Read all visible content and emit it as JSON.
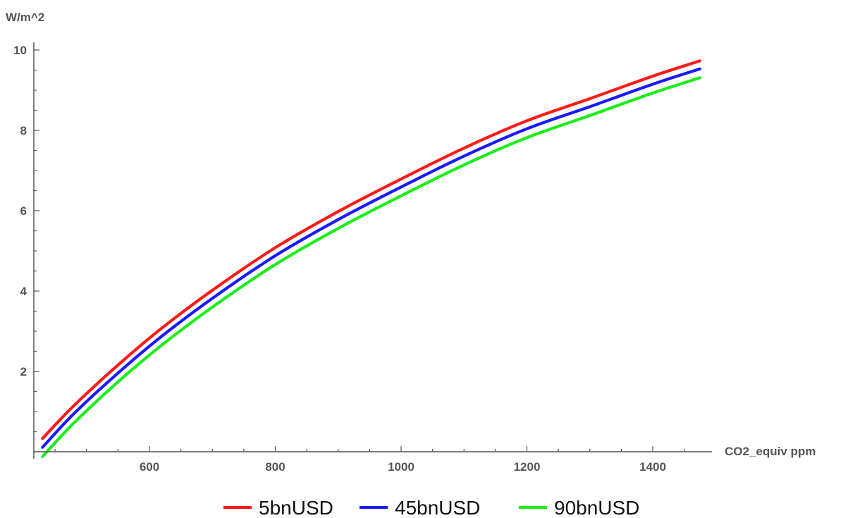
{
  "chart_data": {
    "type": "line",
    "xlabel": "CO2_equiv ppm",
    "ylabel": "W/m^2",
    "xlim": [
      420,
      1500
    ],
    "ylim": [
      0,
      10.3
    ],
    "xticks": [
      "600",
      "800",
      "1000",
      "1200",
      "1400"
    ],
    "yticks": [
      "2",
      "4",
      "6",
      "8",
      "10"
    ],
    "x": [
      430,
      480,
      550,
      620,
      700,
      800,
      900,
      1000,
      1100,
      1200,
      1300,
      1400,
      1475
    ],
    "series": [
      {
        "name": "5bnUSD",
        "color": "#ff1a1a",
        "values": [
          0.33,
          1.15,
          2.16,
          3.08,
          4.02,
          5.08,
          5.98,
          6.79,
          7.56,
          8.24,
          8.79,
          9.35,
          9.73
        ]
      },
      {
        "name": "45bnUSD",
        "color": "#1a1aff",
        "values": [
          0.11,
          0.95,
          1.96,
          2.88,
          3.82,
          4.88,
          5.78,
          6.59,
          7.36,
          8.04,
          8.59,
          9.15,
          9.53
        ]
      },
      {
        "name": "90bnUSD",
        "color": "#1aee1a",
        "values": [
          -0.12,
          0.72,
          1.74,
          2.66,
          3.6,
          4.66,
          5.56,
          6.37,
          7.14,
          7.82,
          8.37,
          8.93,
          9.31
        ]
      }
    ],
    "legend_position": "bottom-center",
    "grid": false
  }
}
